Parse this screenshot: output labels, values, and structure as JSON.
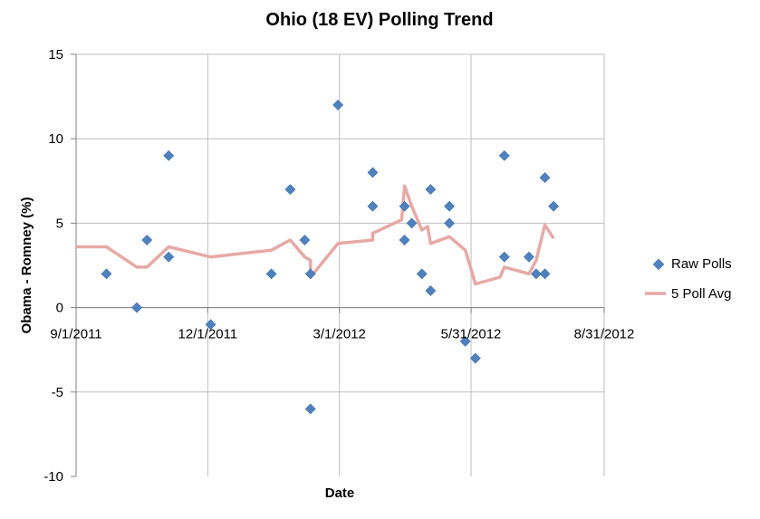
{
  "chart_data": {
    "type": "scatter",
    "title": "Ohio (18 EV) Polling Trend",
    "xlabel": "Date",
    "ylabel": "Obama - Romney (%)",
    "xlim": [
      "2011-09-01",
      "2012-08-31"
    ],
    "ylim": [
      -10,
      15
    ],
    "x_ticks": [
      "9/1/2011",
      "12/1/2011",
      "3/1/2012",
      "5/31/2012",
      "8/31/2012"
    ],
    "y_ticks": [
      -10,
      -5,
      0,
      5,
      10,
      15
    ],
    "grid": true,
    "legend_position": "right",
    "colors": {
      "raw": "#4f81bd",
      "avg": "#e6a9a6",
      "grid": "#bfbfbf"
    },
    "series": [
      {
        "name": "Raw Polls",
        "kind": "scatter",
        "points": [
          {
            "x": "2011-09-22",
            "y": 2
          },
          {
            "x": "2011-10-13",
            "y": 0
          },
          {
            "x": "2011-10-20",
            "y": 4
          },
          {
            "x": "2011-11-04",
            "y": 9
          },
          {
            "x": "2011-11-04",
            "y": 3
          },
          {
            "x": "2011-12-03",
            "y": -1
          },
          {
            "x": "2012-01-14",
            "y": 2
          },
          {
            "x": "2012-01-27",
            "y": 7
          },
          {
            "x": "2012-02-06",
            "y": 4
          },
          {
            "x": "2012-02-10",
            "y": 2
          },
          {
            "x": "2012-02-10",
            "y": -6
          },
          {
            "x": "2012-02-29",
            "y": 12
          },
          {
            "x": "2012-03-24",
            "y": 8
          },
          {
            "x": "2012-03-24",
            "y": 6
          },
          {
            "x": "2012-04-15",
            "y": 6
          },
          {
            "x": "2012-04-15",
            "y": 4
          },
          {
            "x": "2012-04-20",
            "y": 5
          },
          {
            "x": "2012-04-27",
            "y": 2
          },
          {
            "x": "2012-05-03",
            "y": 7
          },
          {
            "x": "2012-05-03",
            "y": 1
          },
          {
            "x": "2012-05-16",
            "y": 6
          },
          {
            "x": "2012-05-16",
            "y": 5
          },
          {
            "x": "2012-05-27",
            "y": -2
          },
          {
            "x": "2012-06-03",
            "y": -3
          },
          {
            "x": "2012-06-23",
            "y": 9
          },
          {
            "x": "2012-06-23",
            "y": 3
          },
          {
            "x": "2012-07-10",
            "y": 3
          },
          {
            "x": "2012-07-15",
            "y": 2
          },
          {
            "x": "2012-07-21",
            "y": 7.7
          },
          {
            "x": "2012-07-21",
            "y": 2
          },
          {
            "x": "2012-07-27",
            "y": 6
          }
        ]
      },
      {
        "name": "5 Poll Avg",
        "kind": "line",
        "points": [
          {
            "x": "2011-09-01",
            "y": 3.6
          },
          {
            "x": "2011-09-22",
            "y": 3.6
          },
          {
            "x": "2011-10-13",
            "y": 2.4
          },
          {
            "x": "2011-10-20",
            "y": 2.4
          },
          {
            "x": "2011-11-04",
            "y": 3.6
          },
          {
            "x": "2011-12-03",
            "y": 3
          },
          {
            "x": "2012-01-14",
            "y": 3.4
          },
          {
            "x": "2012-01-27",
            "y": 4
          },
          {
            "x": "2012-02-06",
            "y": 3
          },
          {
            "x": "2012-02-10",
            "y": 2.8
          },
          {
            "x": "2012-02-10",
            "y": 1.8
          },
          {
            "x": "2012-02-29",
            "y": 3.8
          },
          {
            "x": "2012-03-24",
            "y": 4
          },
          {
            "x": "2012-03-24",
            "y": 4.4
          },
          {
            "x": "2012-04-13",
            "y": 5.2
          },
          {
            "x": "2012-04-15",
            "y": 7.2
          },
          {
            "x": "2012-04-20",
            "y": 6
          },
          {
            "x": "2012-04-27",
            "y": 4.6
          },
          {
            "x": "2012-05-01",
            "y": 4.8
          },
          {
            "x": "2012-05-03",
            "y": 3.8
          },
          {
            "x": "2012-05-16",
            "y": 4.2
          },
          {
            "x": "2012-05-27",
            "y": 3.4
          },
          {
            "x": "2012-06-03",
            "y": 1.4
          },
          {
            "x": "2012-06-20",
            "y": 1.8
          },
          {
            "x": "2012-06-23",
            "y": 2.4
          },
          {
            "x": "2012-07-10",
            "y": 2
          },
          {
            "x": "2012-07-15",
            "y": 2.8
          },
          {
            "x": "2012-07-21",
            "y": 4.9
          },
          {
            "x": "2012-07-27",
            "y": 4.1
          }
        ]
      }
    ]
  }
}
